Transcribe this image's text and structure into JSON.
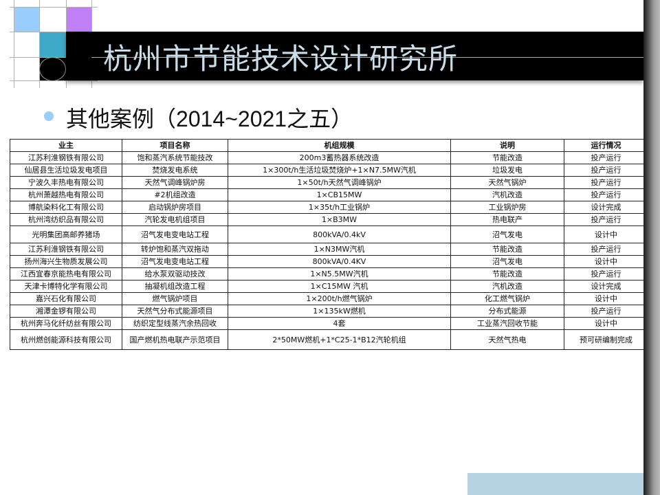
{
  "header": {
    "title": "杭州市节能技术设计研究所"
  },
  "slide": {
    "subtitle_prefix": "其他案例（",
    "subtitle_range": "2014~2021",
    "subtitle_suffix": "之五）"
  },
  "colors": {
    "banner": "#000000",
    "title_text": "#c9dde8",
    "square_light_blue": "#99ccff",
    "square_purple": "#c080f8",
    "square_teal": "#40a8c8",
    "bullet": "#99ccff",
    "footer_box": "#b8d4e4"
  },
  "table": {
    "headers": [
      "业主",
      "项目名称",
      "机组规模",
      "说明",
      "运行情况"
    ],
    "rows": [
      [
        "江苏利淮钢铁有限公司",
        "饱和蒸汽系统节能技改",
        "200m3蓄热器系统改造",
        "节能改造",
        "投产运行"
      ],
      [
        "仙居县生活垃圾发电项目",
        "焚烧发电系统",
        "1×300t/h生活垃圾焚烧炉+1×N7.5MW汽机",
        "垃圾发电",
        "投产运行"
      ],
      [
        "宁波久丰热电有限公司",
        "天然气调峰锅炉房",
        "1×50t/h天然气调峰锅炉",
        "天然气锅炉",
        "投产运行"
      ],
      [
        "杭州萧越热电有限公司",
        "#2机组改造",
        "1×CB15MW",
        "汽机改造",
        "投产运行"
      ],
      [
        "博航染料化工有限公司",
        "启动锅炉房项目",
        "1×35t/h工业锅炉",
        "工业锅炉房",
        "设计完成"
      ],
      [
        "杭州湾纺织品有限公司",
        "汽轮发电机组项目",
        "1×B3MW",
        "热电联产",
        "投产运行"
      ],
      [
        "光明集团高邮养猪场",
        "沼气发电变电站工程",
        "800kVA/0.4kV",
        "沼气发电",
        "设计中"
      ],
      [
        "江苏利淮钢铁有限公司",
        "转炉饱和蒸汽双拖动",
        "1×N3MW汽机",
        "节能改造",
        "投产运行"
      ],
      [
        "扬州海兴生物质发展公司",
        "沼气发电变电站工程",
        "800kVA/0.4KV",
        "沼气发电",
        "设计中"
      ],
      [
        "江西宜春京能热电有限公司",
        "给水泵双驱动技改",
        "1×N5.5MW汽机",
        "节能改造",
        "投产运行"
      ],
      [
        "天津卡博特化学有限公司",
        "抽凝机组改造工程",
        "1×C15MW 汽机",
        "汽机改造",
        "设计完成"
      ],
      [
        "嘉兴石化有限公司",
        "燃气锅炉项目",
        "1×200t/h燃气锅炉",
        "化工燃气锅炉",
        "设计中"
      ],
      [
        "湘潭金锣有限公司",
        "天然气分布式能源项目",
        "1×135kW燃机",
        "分布式能源",
        "投产运行"
      ],
      [
        "杭州奔马化纤纺丝有限公司",
        "纺织定型线蒸汽余热回收",
        "4套",
        "工业蒸汽回收节能",
        "设计中"
      ],
      [
        "杭州燃创能源科技有限公司",
        "国产燃机热电联产示范项目",
        "2*50MW燃机+1*C25-1*B12汽轮机组",
        "天然气热电",
        "预可研编制完成"
      ]
    ]
  }
}
